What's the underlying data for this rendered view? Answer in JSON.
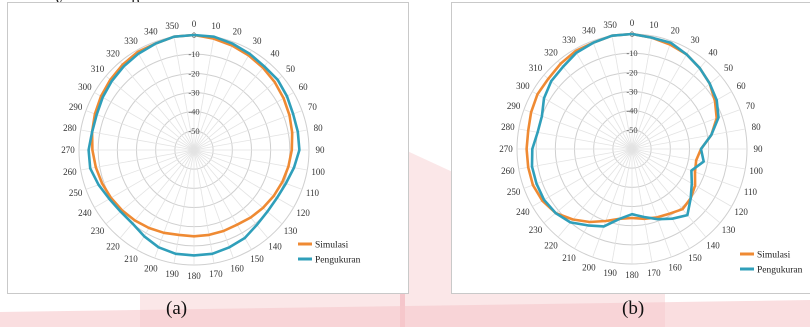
{
  "header_text": "...y ... ... ... ...p ...",
  "colors": {
    "simulasi": "#ef8a33",
    "pengukuran": "#2f9fba",
    "grid": "#cfcfcf",
    "watermark": "#f2b8bd"
  },
  "chart_data": [
    {
      "type": "polar-line",
      "caption": "(a)",
      "angle_ticks": [
        0,
        10,
        20,
        30,
        40,
        50,
        60,
        70,
        80,
        90,
        100,
        110,
        120,
        130,
        140,
        150,
        160,
        170,
        180,
        190,
        200,
        210,
        220,
        230,
        240,
        250,
        260,
        270,
        280,
        290,
        300,
        310,
        320,
        330,
        340,
        350
      ],
      "radial_ticks": [
        0,
        -10,
        -20,
        -30,
        -40,
        -50
      ],
      "rlim": [
        -60,
        0
      ],
      "legend": {
        "position": "bottom-right"
      },
      "series": [
        {
          "name": "Simulasi",
          "color": "#ef8a33",
          "angles": [
            0,
            10,
            20,
            30,
            40,
            50,
            60,
            70,
            80,
            90,
            100,
            110,
            120,
            130,
            140,
            150,
            160,
            170,
            180,
            190,
            200,
            210,
            220,
            230,
            240,
            250,
            260,
            270,
            280,
            290,
            300,
            310,
            320,
            330,
            340,
            350
          ],
          "values": [
            0,
            -1,
            -2,
            -3,
            -4,
            -5,
            -6,
            -7,
            -8,
            -9,
            -10,
            -11,
            -12,
            -13,
            -14,
            -15,
            -15,
            -15,
            -15,
            -15,
            -14,
            -13,
            -12,
            -11,
            -10,
            -9,
            -8,
            -7,
            -6,
            -5,
            -4,
            -3,
            -2,
            -1,
            -1,
            0
          ]
        },
        {
          "name": "Pengukuran",
          "color": "#2f9fba",
          "angles": [
            0,
            10,
            20,
            30,
            40,
            50,
            60,
            70,
            80,
            90,
            100,
            110,
            120,
            130,
            140,
            150,
            160,
            170,
            180,
            190,
            200,
            210,
            220,
            230,
            240,
            250,
            260,
            270,
            280,
            290,
            300,
            310,
            320,
            330,
            340,
            350
          ],
          "values": [
            0,
            0,
            -1,
            -2,
            -3,
            -3,
            -4,
            -5,
            -5,
            -5,
            -7,
            -9,
            -10,
            -10,
            -9,
            -7,
            -6,
            -5,
            -5,
            -5,
            -6,
            -8,
            -10,
            -10,
            -9,
            -7,
            -5,
            -5,
            -6,
            -6,
            -5,
            -4,
            -3,
            -2,
            -1,
            0
          ]
        }
      ]
    },
    {
      "type": "polar-line",
      "caption": "(b)",
      "angle_ticks": [
        0,
        10,
        20,
        30,
        40,
        50,
        60,
        70,
        80,
        90,
        100,
        110,
        120,
        130,
        140,
        150,
        160,
        170,
        180,
        190,
        200,
        210,
        220,
        230,
        240,
        250,
        260,
        270,
        280,
        290,
        300,
        310,
        320,
        330,
        340,
        350
      ],
      "radial_ticks": [
        0,
        -10,
        -20,
        -30,
        -40,
        -50
      ],
      "rlim": [
        -60,
        0
      ],
      "legend": {
        "position": "bottom-right"
      },
      "series": [
        {
          "name": "Simulasi",
          "color": "#ef8a33",
          "angles": [
            0,
            10,
            20,
            30,
            40,
            50,
            60,
            70,
            80,
            90,
            100,
            110,
            120,
            130,
            140,
            150,
            160,
            170,
            180,
            190,
            200,
            210,
            220,
            230,
            240,
            250,
            260,
            270,
            280,
            290,
            300,
            310,
            320,
            330,
            340,
            350
          ],
          "values": [
            0,
            -1,
            -2,
            -3,
            -5,
            -7,
            -10,
            -13,
            -18,
            -24,
            -26,
            -25,
            -22,
            -20,
            -19,
            -21,
            -22,
            -23,
            -24,
            -23,
            -20,
            -16,
            -12,
            -8,
            -6,
            -5,
            -5,
            -5,
            -5,
            -4,
            -3,
            -3,
            -2,
            -1,
            -1,
            0
          ]
        },
        {
          "name": "Pengukuran",
          "color": "#2f9fba",
          "angles": [
            0,
            10,
            20,
            30,
            40,
            50,
            60,
            70,
            80,
            90,
            100,
            110,
            120,
            130,
            140,
            150,
            160,
            170,
            180,
            190,
            200,
            210,
            220,
            230,
            240,
            250,
            260,
            270,
            280,
            290,
            300,
            310,
            320,
            330,
            340,
            350
          ],
          "values": [
            0,
            -1,
            -1,
            -3,
            -5,
            -7,
            -9,
            -12,
            -18,
            -24,
            -22,
            -27,
            -24,
            -20,
            -15,
            -18,
            -21,
            -24,
            -26,
            -23,
            -17,
            -14,
            -10,
            -8,
            -7,
            -7,
            -7,
            -8,
            -10,
            -10,
            -7,
            -5,
            -4,
            -2,
            -1,
            0
          ]
        }
      ]
    }
  ]
}
